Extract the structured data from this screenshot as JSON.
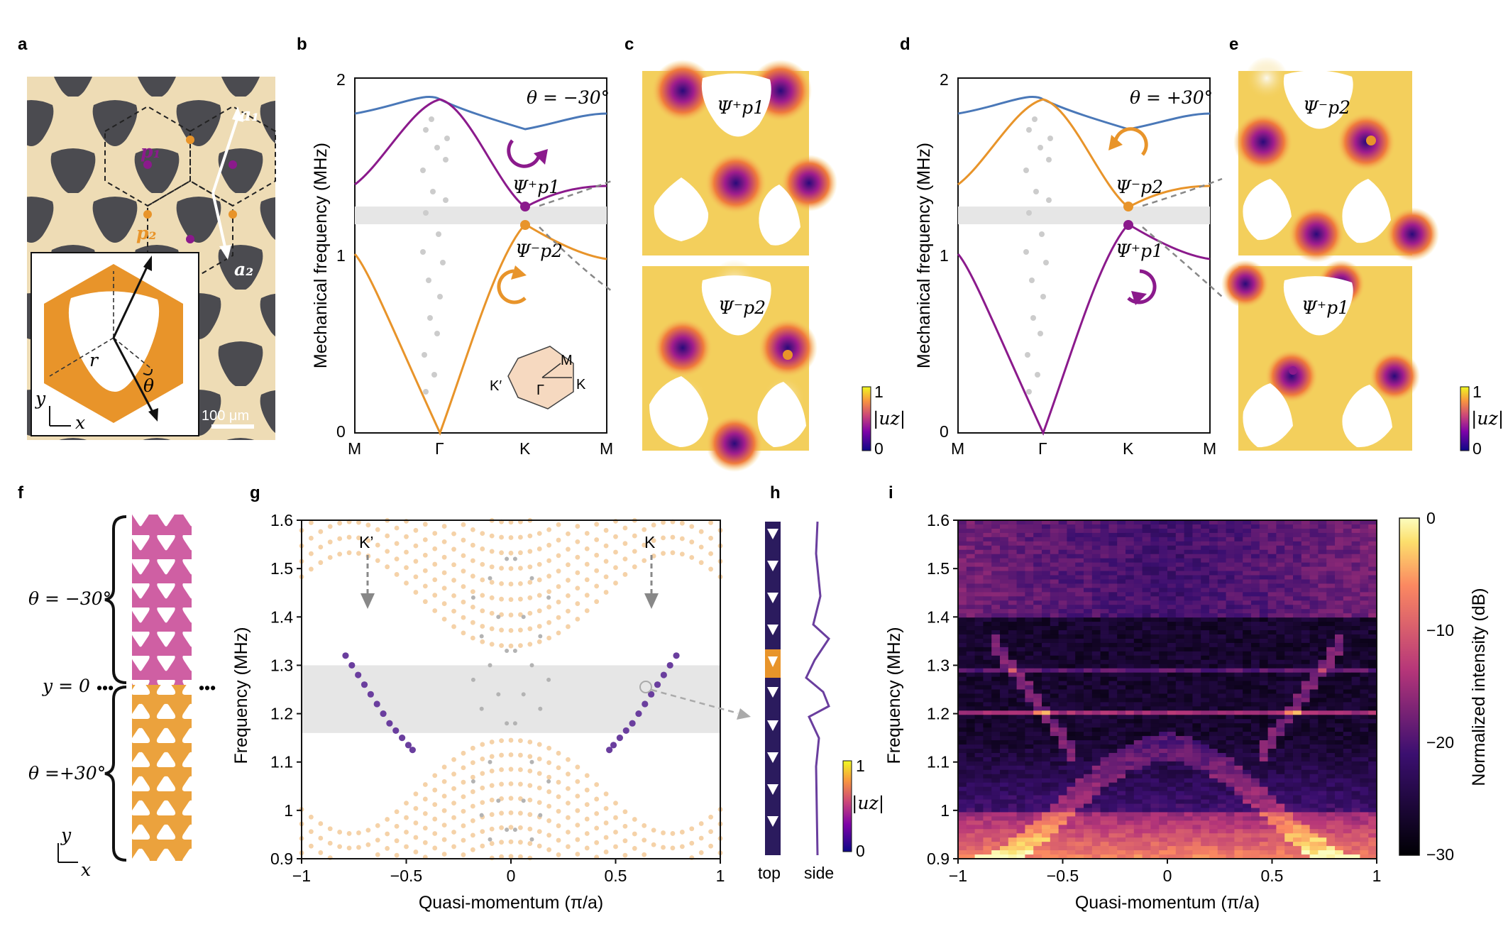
{
  "panels": {
    "a": "a",
    "b": "b",
    "c": "c",
    "d": "d",
    "e": "e",
    "f": "f",
    "g": "g",
    "h": "h",
    "i": "i"
  },
  "panel_a": {
    "a1": "a₁",
    "a2": "a₂",
    "p1": "p₁",
    "p2": "p₂",
    "r": "r",
    "theta": "θ",
    "x": "x",
    "y": "y",
    "scale_bar": "100 μm"
  },
  "panel_b": {
    "theta_label": "θ = −30°",
    "ylabel": "Mechanical frequency (MHz)",
    "xticks": [
      "M",
      "Γ",
      "K",
      "M"
    ],
    "yticks": [
      "0",
      "1",
      "2"
    ],
    "upper_mode": "Ψ⁺p1",
    "lower_mode": "Ψ⁻p2",
    "bz": {
      "K_prime": "K′",
      "Gamma": "Γ",
      "K": "K",
      "M": "M"
    }
  },
  "panel_c": {
    "top_mode": "Ψ⁺p1",
    "bottom_mode": "Ψ⁻p2",
    "cbar_top": "1",
    "cbar_bottom": "0",
    "cbar_label": "|uz|"
  },
  "panel_d": {
    "theta_label": "θ = +30°",
    "ylabel": "Mechanical frequency (MHz)",
    "xticks": [
      "M",
      "Γ",
      "K",
      "M"
    ],
    "yticks": [
      "0",
      "1",
      "2"
    ],
    "upper_mode": "Ψ⁻p2",
    "lower_mode": "Ψ⁺p1"
  },
  "panel_e": {
    "top_mode": "Ψ⁻p2",
    "bottom_mode": "Ψ⁺p1",
    "cbar_top": "1",
    "cbar_bottom": "0",
    "cbar_label": "|uz|"
  },
  "panel_f": {
    "top_label": "θ = −30°",
    "mid_label": "y = 0",
    "dots": "•••",
    "bottom_label": "θ =+30°",
    "x": "x",
    "y": "y"
  },
  "panel_g": {
    "k_prime": "K’",
    "k": "K"
  },
  "panel_h": {
    "top": "top",
    "side": "side",
    "cbar_top": "1",
    "cbar_bottom": "0",
    "cbar_label": "|uz|"
  },
  "panel_i": {
    "cbar_label": "Normalized intensity (dB)",
    "cbar_ticks": [
      "0",
      "−10",
      "−20",
      "−30"
    ]
  },
  "colors": {
    "purple": "#8b1a8c",
    "orange": "#e8942a",
    "blue": "#4a78b8",
    "edge": "#6a3e9e",
    "bulk": "#f5d2a8",
    "gap": "#e6e6e6"
  },
  "chart_data": [
    {
      "id": "g",
      "type": "scatter",
      "xlabel": "Quasi-momentum (π/a)",
      "ylabel": "Frequency (MHz)",
      "xlim": [
        -1,
        1
      ],
      "ylim": [
        0.9,
        1.6
      ],
      "xticks": [
        "−1",
        "−0.5",
        "0",
        "0.5",
        "1"
      ],
      "yticks": [
        "0.9",
        "1",
        "1.1",
        "1.2",
        "1.3",
        "1.4",
        "1.5",
        "1.6"
      ],
      "bandgap": [
        1.16,
        1.3
      ],
      "series": [
        {
          "name": "edge modes (K’)",
          "x": [
            -0.79,
            -0.76,
            -0.73,
            -0.7,
            -0.67,
            -0.64,
            -0.61,
            -0.58,
            -0.55,
            -0.52,
            -0.49,
            -0.47
          ],
          "y": [
            1.32,
            1.3,
            1.28,
            1.26,
            1.24,
            1.22,
            1.2,
            1.18,
            1.165,
            1.15,
            1.135,
            1.125
          ]
        },
        {
          "name": "edge modes (K)",
          "x": [
            0.47,
            0.49,
            0.52,
            0.55,
            0.58,
            0.61,
            0.64,
            0.67,
            0.7,
            0.73,
            0.76,
            0.79
          ],
          "y": [
            1.125,
            1.135,
            1.15,
            1.165,
            1.18,
            1.2,
            1.22,
            1.24,
            1.26,
            1.28,
            1.3,
            1.32
          ]
        },
        {
          "name": "upper bulk bands",
          "upper": [
            1.34,
            1.372,
            1.404,
            1.436,
            1.468,
            1.5,
            1.532,
            1.564,
            1.596
          ]
        },
        {
          "name": "lower bulk bands",
          "lower": [
            1.145,
            1.115,
            1.085,
            1.055,
            1.025,
            0.995,
            0.965,
            0.935,
            0.905
          ]
        }
      ]
    },
    {
      "id": "i",
      "type": "heatmap",
      "xlabel": "Quasi-momentum (π/a)",
      "ylabel": "Frequency (MHz)",
      "xlim": [
        -1,
        1
      ],
      "ylim": [
        0.9,
        1.6
      ],
      "xticks": [
        "−1",
        "−0.5",
        "0",
        "0.5",
        "1"
      ],
      "yticks": [
        "0.9",
        "1",
        "1.1",
        "1.2",
        "1.3",
        "1.4",
        "1.5",
        "1.6"
      ],
      "colorbar": {
        "label": "Normalized intensity (dB)",
        "range": [
          -30,
          0
        ]
      }
    }
  ]
}
